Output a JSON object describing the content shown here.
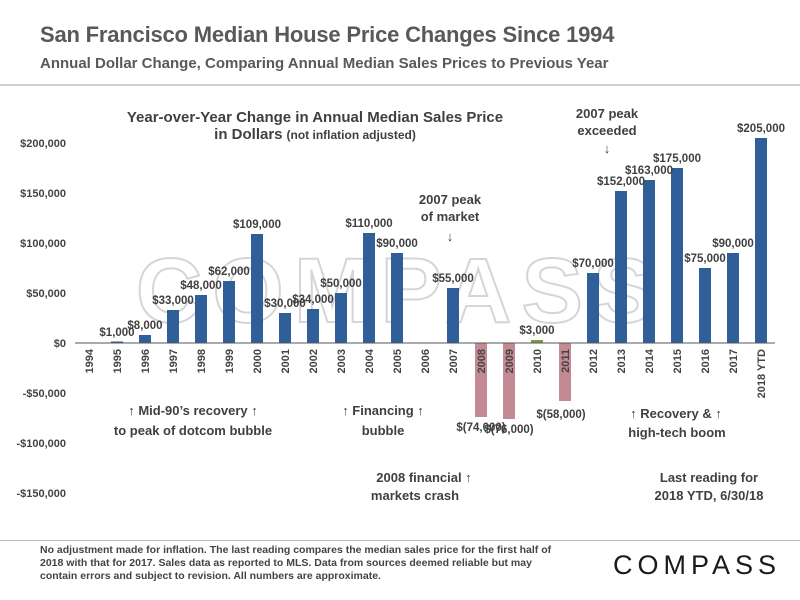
{
  "header": {
    "title": "San Francisco Median House Price Changes Since 1994",
    "subtitle": "Annual Dollar Change, Comparing Annual Median Sales Prices to Previous Year"
  },
  "chart_data": {
    "type": "bar",
    "title": "Year-over-Year Change in Annual Median Sales Price",
    "title_line2": "in Dollars",
    "title_note": "(not inflation adjusted)",
    "categories": [
      "1994",
      "1995",
      "1996",
      "1997",
      "1998",
      "1999",
      "2000",
      "2001",
      "2002",
      "2003",
      "2004",
      "2005",
      "2006",
      "2007",
      "2008",
      "2009",
      "2010",
      "2011",
      "2012",
      "2013",
      "2014",
      "2015",
      "2016",
      "2017",
      "2018 YTD"
    ],
    "values": [
      0,
      1000,
      8000,
      33000,
      48000,
      62000,
      109000,
      30000,
      34000,
      50000,
      110000,
      90000,
      0,
      55000,
      -74000,
      -76000,
      3000,
      -58000,
      70000,
      152000,
      163000,
      175000,
      75000,
      90000,
      205000
    ],
    "data_labels": [
      "",
      "$1,000",
      "$8,000",
      "$33,000",
      "$48,000",
      "$62,000",
      "$109,000",
      "$30,000",
      "$34,000",
      "$50,000",
      "$110,000",
      "$90,000",
      "",
      "$55,000",
      "$(74,000)",
      "$(76,000)",
      "$3,000",
      "$(58,000)",
      "$70,000",
      "$152,000",
      "$163,000",
      "$175,000",
      "$75,000",
      "$90,000",
      "$205,000"
    ],
    "ylim": [
      -150000,
      200000
    ],
    "y_ticks": [
      200000,
      150000,
      100000,
      50000,
      0,
      -50000,
      -100000,
      -150000
    ],
    "y_tick_labels": [
      "$200,000",
      "$150,000",
      "$100,000",
      "$50,000",
      "$0",
      "-$50,000",
      "-$100,000",
      "-$150,000"
    ],
    "colors": {
      "positive": "#2f5f98",
      "negative": "#c48a94",
      "small_positive": "#7a9c3c"
    },
    "grid": false,
    "legend": "none",
    "watermark": "COMPASS",
    "annotations": {
      "mid90s_line1": "↑  Mid-90’s  recovery  ↑",
      "mid90s_line2": "to peak of dotcom bubble",
      "financing_line1": "↑  Financing  ↑",
      "financing_line2": "bubble",
      "peak2007_line1": "2007 peak",
      "peak2007_line2": "of market",
      "peak2007_arrow": "↓",
      "crash_line1": "2008 financial  ↑",
      "crash_line2": "markets crash",
      "exceeded_line1": "2007 peak",
      "exceeded_line2": "exceeded",
      "exceeded_arrow": "↓",
      "recovery_line1": "↑      Recovery &      ↑",
      "recovery_line2": "high-tech boom",
      "last_line1": "Last reading for",
      "last_line2": "2018 YTD, 6/30/18"
    }
  },
  "footer": {
    "note": "No adjustment made for inflation. The last reading compares the median sales price for the first half of 2018 with that for 2017. Sales data as reported to MLS. Data from sources deemed reliable but may contain errors and subject to revision. All numbers are approximate.",
    "brand": "COMPASS"
  }
}
